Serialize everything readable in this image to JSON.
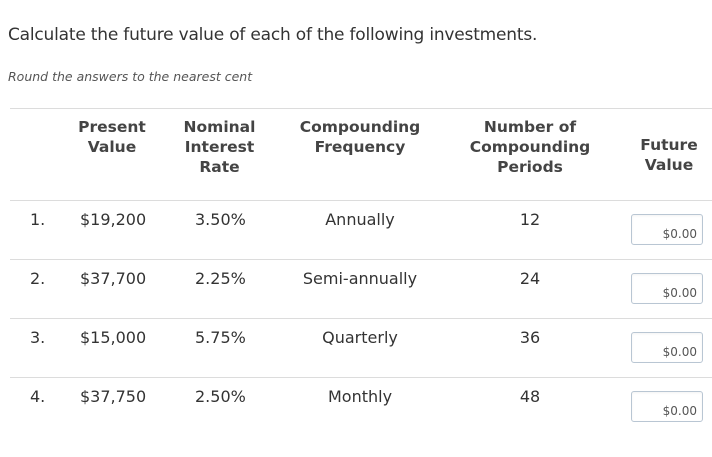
{
  "question": "Calculate the future value of each of the following investments.",
  "instruction": "Round the answers to the nearest cent",
  "columns": {
    "present_value": [
      "Present",
      "Value"
    ],
    "nominal_rate": [
      "Nominal",
      "Interest",
      "Rate"
    ],
    "compounding_frequency": [
      "Compounding",
      "Frequency"
    ],
    "periods": [
      "Number of",
      "Compounding",
      "Periods"
    ],
    "future_value": [
      "Future",
      "Value"
    ]
  },
  "rows": [
    {
      "num": "1.",
      "pv": "$19,200",
      "rate": "3.50%",
      "freq": "Annually",
      "periods": "12",
      "fv": "$0.00"
    },
    {
      "num": "2.",
      "pv": "$37,700",
      "rate": "2.25%",
      "freq": "Semi-annually",
      "periods": "24",
      "fv": "$0.00"
    },
    {
      "num": "3.",
      "pv": "$15,000",
      "rate": "5.75%",
      "freq": "Quarterly",
      "periods": "36",
      "fv": "$0.00"
    },
    {
      "num": "4.",
      "pv": "$37,750",
      "rate": "2.50%",
      "freq": "Monthly",
      "periods": "48",
      "fv": "$0.00"
    }
  ]
}
